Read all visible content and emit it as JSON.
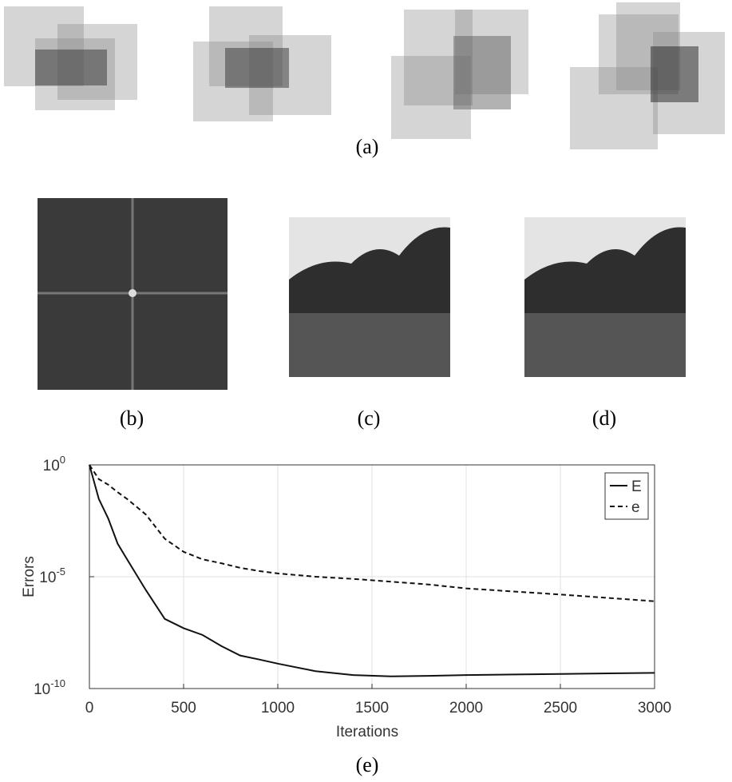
{
  "figure": {
    "captions": {
      "a": "(a)",
      "b": "(b)",
      "c": "(c)",
      "d": "(d)",
      "e": "(e)"
    }
  },
  "chart_data": {
    "type": "line",
    "xlabel": "Iterations",
    "ylabel": "Errors",
    "x": [
      0,
      50,
      100,
      150,
      200,
      300,
      400,
      500,
      600,
      700,
      800,
      900,
      1000,
      1200,
      1400,
      1600,
      1800,
      2000,
      2500,
      3000
    ],
    "series": [
      {
        "name": "E",
        "color": "#111111",
        "line_style": "solid",
        "values": [
          1,
          0.03,
          0.004,
          0.0003,
          6e-05,
          2.5e-06,
          1.3e-07,
          5e-08,
          2.5e-08,
          8e-09,
          3e-09,
          2e-09,
          1.3e-09,
          6e-10,
          4e-10,
          3.5e-10,
          3.7e-10,
          4e-10,
          4.5e-10,
          5e-10
        ]
      },
      {
        "name": "e",
        "color": "#111111",
        "line_style": "dashed",
        "values": [
          1,
          0.23,
          0.13,
          0.06,
          0.03,
          0.006,
          0.0005,
          0.00013,
          6e-05,
          4e-05,
          2.5e-05,
          1.8e-05,
          1.4e-05,
          1e-05,
          8e-06,
          6e-06,
          4.5e-06,
          3e-06,
          1.6e-06,
          8e-07
        ]
      }
    ],
    "xlim": [
      0,
      3000
    ],
    "xticks": [
      0,
      500,
      1000,
      1500,
      2000,
      2500,
      3000
    ],
    "ylim": [
      1e-10,
      1
    ],
    "yscale": "log",
    "yticks": [
      {
        "value": 1e-10,
        "label": "10",
        "exponent": "-10"
      },
      {
        "value": 1e-05,
        "label": "10",
        "exponent": "-5"
      },
      {
        "value": 1,
        "label": "10",
        "exponent": "0"
      }
    ],
    "grid": true,
    "legend": "upper right"
  }
}
